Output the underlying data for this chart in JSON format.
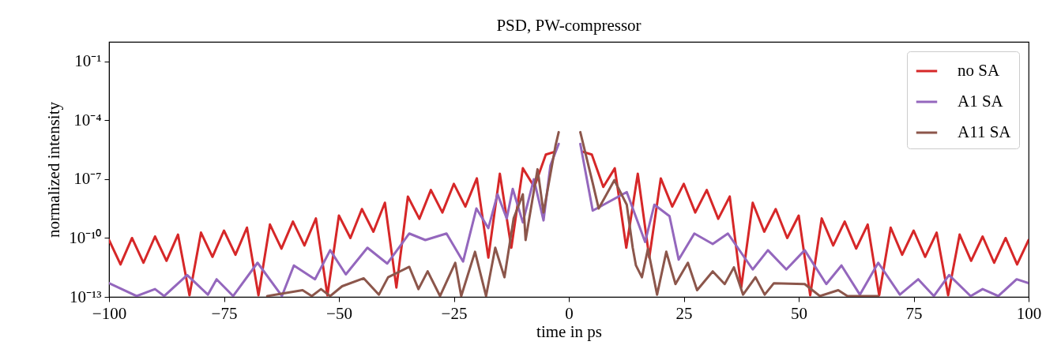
{
  "chart_data": {
    "type": "line",
    "title": "PSD, PW-compressor",
    "xlabel": "time in ps",
    "ylabel": "normalized intensity",
    "log": "y",
    "grid": false,
    "legend": "top right",
    "line_style": "solid",
    "xlim": [
      -100,
      100
    ],
    "xticks": [
      {
        "value": -100,
        "label": "−100"
      },
      {
        "value": -75,
        "label": "−75"
      },
      {
        "value": -50,
        "label": "−50"
      },
      {
        "value": -25,
        "label": "−25"
      },
      0,
      25,
      50,
      75,
      100
    ],
    "ylim": [
      1e-13,
      1
    ],
    "yticks": [
      {
        "value": 1e-13,
        "label": "10⁻¹³"
      },
      {
        "value": 1e-10,
        "label": "10⁻¹⁰"
      },
      {
        "value": 1e-07,
        "label": "10⁻⁷"
      },
      {
        "value": 0.0001,
        "label": "10⁻⁴"
      },
      {
        "value": 0.1,
        "label": "10⁻¹"
      }
    ],
    "series": [
      {
        "name": "no SA",
        "color": "#d62728",
        "x": [
          -100,
          -97.5,
          -95,
          -92.5,
          -90,
          -87.5,
          -85,
          -82.5,
          -80,
          -77.5,
          -75,
          -72.5,
          -70,
          -67.5,
          -65,
          -62.5,
          -60,
          -57.5,
          -55,
          -52.5,
          -50,
          -47.5,
          -45,
          -42.5,
          -40,
          -37.5,
          -35,
          -32.5,
          -30,
          -27.5,
          -25,
          -22.5,
          -20,
          -17.5,
          -15,
          -12.5,
          -10,
          -7.5,
          -5,
          -3,
          0,
          3,
          5,
          7.5,
          10,
          12.5,
          15,
          17.5,
          20,
          22.5,
          25,
          27.5,
          30,
          32.5,
          35,
          37.5,
          40,
          42.5,
          45,
          47.5,
          50,
          52.5,
          55,
          57.5,
          60,
          62.5,
          65,
          67.5,
          70,
          72.5,
          75,
          77.5,
          80,
          82.5,
          85,
          87.5,
          90,
          92.5,
          95,
          97.5,
          100
        ],
        "values": [
          7.9e-11,
          4.5e-12,
          1e-10,
          5.5e-12,
          1.2e-10,
          6.9e-12,
          1.5e-10,
          1.2e-13,
          1.9e-10,
          1.1e-11,
          2.4e-10,
          1.4e-11,
          3.4e-10,
          1.2e-13,
          4.9e-10,
          2.9e-11,
          6.9e-10,
          4.2e-11,
          1e-09,
          1.2e-13,
          1.4e-09,
          1e-10,
          3e-09,
          2.1e-10,
          6.3e-09,
          3e-13,
          1.3e-08,
          9.5e-10,
          2.8e-08,
          2e-09,
          5.8e-08,
          4e-09,
          1.1e-07,
          1e-11,
          1.9e-07,
          3.2e-11,
          3.6e-07,
          4e-08,
          1.8e-06,
          2.5e-06,
          null,
          2.5e-06,
          1.8e-06,
          4e-08,
          3.6e-07,
          3.2e-11,
          1.9e-07,
          1e-11,
          1.1e-07,
          4e-09,
          5.8e-08,
          2e-09,
          2.8e-08,
          9.5e-10,
          1.3e-08,
          3e-13,
          6.3e-09,
          2.1e-10,
          3e-09,
          1e-10,
          1.4e-09,
          1.2e-13,
          1e-09,
          4.2e-11,
          6.9e-10,
          2.9e-11,
          4.9e-10,
          1.2e-13,
          3.4e-10,
          1.4e-11,
          2.4e-10,
          1.1e-11,
          1.9e-10,
          1.2e-13,
          1.5e-10,
          6.9e-12,
          1.2e-10,
          5.5e-12,
          1e-10,
          4.5e-12,
          7.9e-11
        ]
      },
      {
        "name": "A1 SA",
        "color": "#9467bd",
        "x": [
          -100,
          -94,
          -90,
          -88,
          -83,
          -78.5,
          -76.6,
          -73,
          -67.7,
          -62.4,
          -59.8,
          -55.2,
          -51.9,
          -48.5,
          -43.8,
          -39.5,
          -34.7,
          -31.2,
          -26.6,
          -23,
          -20.1,
          -17.5,
          -15.5,
          -13.5,
          -12.2,
          -10,
          -7.6,
          -5.5,
          -4,
          -2.2,
          0,
          2.5,
          5.2,
          12.6,
          16.6,
          18.6,
          21.9,
          23.9,
          27.3,
          31.3,
          34.6,
          40,
          43.3,
          47.3,
          51.3,
          56,
          59.3,
          63.3,
          67.3,
          72,
          76,
          79.4,
          82.7,
          87.4,
          90,
          93.4,
          97.4,
          100
        ],
        "values": [
          5e-13,
          1.1e-13,
          2.5e-13,
          1.1e-13,
          1.3e-12,
          1.3e-13,
          7.9e-13,
          1.1e-13,
          5.5e-12,
          1.1e-13,
          4e-12,
          7.9e-13,
          2.4e-11,
          1.4e-12,
          3.2e-11,
          5e-12,
          1.7e-10,
          7.9e-11,
          1.7e-10,
          6.3e-12,
          3.2e-09,
          3.2e-10,
          1.7e-08,
          1e-09,
          3.2e-08,
          6.3e-10,
          1e-07,
          7.9e-10,
          5e-07,
          6.3e-06,
          null,
          6.3e-06,
          2.5e-09,
          2.2e-08,
          6.3e-11,
          5e-09,
          1.3e-09,
          7.9e-12,
          1.7e-10,
          5e-11,
          1.7e-10,
          2.5e-12,
          2.4e-11,
          2.5e-12,
          2.4e-11,
          4.5e-13,
          4e-12,
          1.3e-13,
          5.5e-12,
          1.3e-13,
          7.9e-13,
          1.1e-13,
          1.3e-12,
          1.1e-13,
          2.5e-13,
          1.1e-13,
          7.9e-13,
          5e-13
        ]
      },
      {
        "name": "A11 SA",
        "color": "#8c564b",
        "x": [
          -65.6,
          -57.9,
          -55.9,
          -53.9,
          -51.9,
          -49.3,
          -44.6,
          -41.3,
          -39.3,
          -34.7,
          -32.7,
          -30.7,
          -28,
          -24.7,
          -23.4,
          -20.4,
          -18,
          -16,
          -14,
          -12,
          -10,
          -9.4,
          -6.8,
          -5.5,
          -2.9,
          -2.2,
          0,
          2.5,
          5.2,
          6.5,
          9.9,
          12.6,
          13.9,
          14.6,
          15.9,
          17.2,
          19.2,
          21.2,
          23.2,
          25.9,
          27.9,
          31.3,
          33.9,
          35.9,
          37.9,
          40.6,
          42.6,
          44.6,
          51.3,
          54.6,
          58.6,
          60.6,
          65.3,
          67.3
        ],
        "values": [
          1.1e-13,
          2.2e-13,
          1.1e-13,
          2.5e-13,
          1.1e-13,
          3.5e-13,
          8.9e-13,
          1.3e-13,
          1e-12,
          3.4e-12,
          2.5e-13,
          2e-12,
          1.1e-13,
          5.5e-12,
          1.1e-13,
          2e-11,
          1.1e-13,
          3.2e-11,
          1e-12,
          1e-09,
          1.7e-08,
          7.9e-11,
          3.2e-07,
          2e-09,
          5e-06,
          2.5e-05,
          null,
          2.5e-05,
          6.3e-08,
          3.2e-09,
          8.9e-08,
          5e-09,
          3.2e-11,
          4e-12,
          1e-12,
          2.8e-11,
          1.3e-13,
          2e-11,
          4.5e-13,
          5.5e-12,
          2.2e-13,
          2e-12,
          4.5e-13,
          3.2e-12,
          1.3e-13,
          1e-12,
          1.3e-13,
          5e-13,
          4.5e-13,
          1.1e-13,
          2.2e-13,
          1.1e-13,
          1.1e-13,
          1.1e-13
        ]
      }
    ]
  }
}
